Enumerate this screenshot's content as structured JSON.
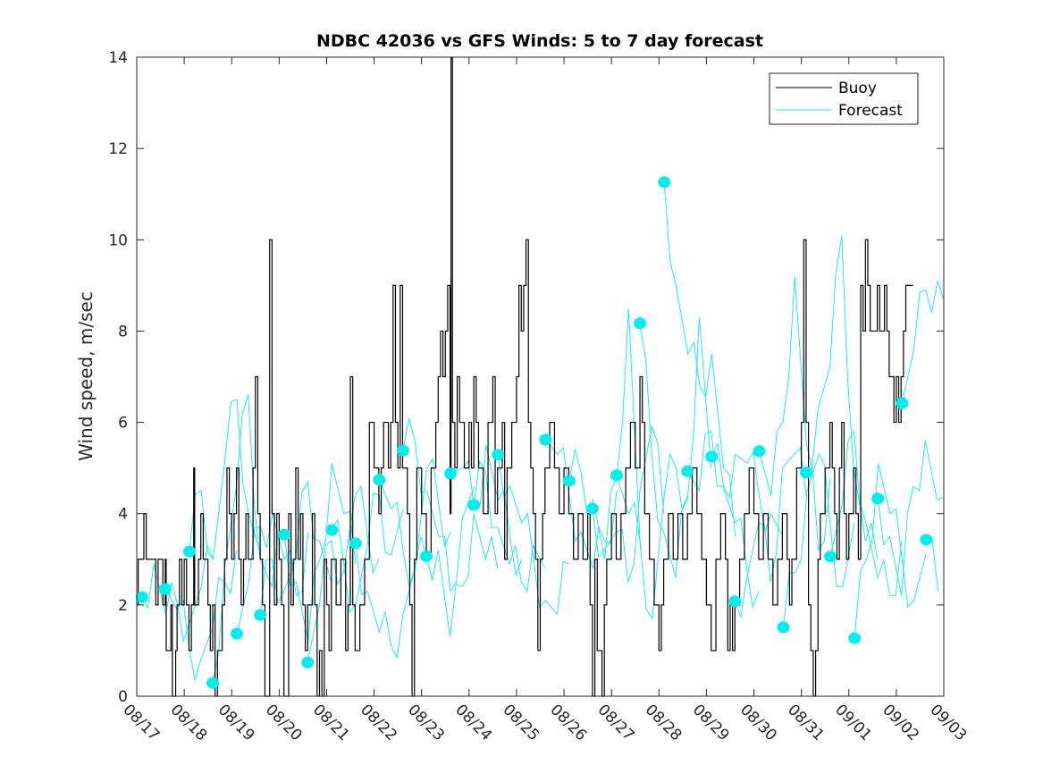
{
  "chart_data": {
    "type": "line",
    "title": "NDBC 42036 vs GFS Winds: 5 to 7 day forecast",
    "xlabel": "",
    "ylabel": "Wind speed, m/sec",
    "ylim": [
      0,
      14
    ],
    "xlim_days": [
      0,
      17
    ],
    "x_origin_date": "08/17",
    "x_tick_labels": [
      "08/17",
      "08/18",
      "08/19",
      "08/20",
      "08/21",
      "08/22",
      "08/23",
      "08/24",
      "08/25",
      "08/26",
      "08/27",
      "08/28",
      "08/29",
      "08/30",
      "08/31",
      "09/01",
      "09/02",
      "09/03"
    ],
    "y_ticks": [
      0,
      2,
      4,
      6,
      8,
      10,
      12,
      14
    ],
    "grid": false,
    "legend": {
      "placement": "top-right",
      "entries": [
        {
          "label": "Buoy",
          "color": "#000000"
        },
        {
          "label": "Forecast",
          "color": "#00e5ee"
        }
      ]
    },
    "colors": {
      "buoy": "#000000",
      "forecast": "#22e8f0",
      "marker": "#00eeee"
    },
    "buoy_series": {
      "name": "Buoy",
      "note": "hourly step series, day offset from 08/17 and speed m/s (approximate)",
      "points": [
        [
          0.0,
          2
        ],
        [
          0.03,
          3
        ],
        [
          0.12,
          3
        ],
        [
          0.15,
          4
        ],
        [
          0.17,
          4
        ],
        [
          0.2,
          3
        ],
        [
          0.4,
          2
        ],
        [
          0.45,
          3
        ],
        [
          0.5,
          3
        ],
        [
          0.55,
          2
        ],
        [
          0.6,
          3
        ],
        [
          0.62,
          1
        ],
        [
          0.7,
          1
        ],
        [
          0.72,
          2
        ],
        [
          0.75,
          0
        ],
        [
          0.8,
          0
        ],
        [
          0.82,
          1
        ],
        [
          0.85,
          2
        ],
        [
          0.9,
          3
        ],
        [
          0.95,
          2
        ],
        [
          1.0,
          3
        ],
        [
          1.05,
          2
        ],
        [
          1.1,
          1
        ],
        [
          1.15,
          2
        ],
        [
          1.2,
          5
        ],
        [
          1.22,
          2
        ],
        [
          1.3,
          3
        ],
        [
          1.35,
          4
        ],
        [
          1.4,
          3
        ],
        [
          1.5,
          2
        ],
        [
          1.55,
          1
        ],
        [
          1.6,
          2
        ],
        [
          1.65,
          0
        ],
        [
          1.7,
          1
        ],
        [
          1.8,
          2
        ],
        [
          1.85,
          3
        ],
        [
          1.9,
          5
        ],
        [
          1.95,
          4
        ],
        [
          2.0,
          3
        ],
        [
          2.05,
          4
        ],
        [
          2.1,
          5
        ],
        [
          2.15,
          3
        ],
        [
          2.2,
          2
        ],
        [
          2.25,
          3
        ],
        [
          2.3,
          4
        ],
        [
          2.35,
          3
        ],
        [
          2.45,
          5
        ],
        [
          2.5,
          7
        ],
        [
          2.55,
          4
        ],
        [
          2.6,
          3
        ],
        [
          2.65,
          2
        ],
        [
          2.7,
          0
        ],
        [
          2.8,
          10
        ],
        [
          2.85,
          4
        ],
        [
          2.9,
          2
        ],
        [
          2.95,
          4
        ],
        [
          3.0,
          3
        ],
        [
          3.05,
          2
        ],
        [
          3.1,
          0
        ],
        [
          3.2,
          4
        ],
        [
          3.25,
          2
        ],
        [
          3.3,
          3
        ],
        [
          3.35,
          5
        ],
        [
          3.4,
          3
        ],
        [
          3.45,
          4
        ],
        [
          3.5,
          2
        ],
        [
          3.55,
          1
        ],
        [
          3.6,
          2
        ],
        [
          3.7,
          4
        ],
        [
          3.75,
          2
        ],
        [
          3.8,
          0
        ],
        [
          3.85,
          1
        ],
        [
          3.9,
          0
        ],
        [
          3.95,
          3
        ],
        [
          4.0,
          2
        ],
        [
          4.05,
          1
        ],
        [
          4.1,
          3
        ],
        [
          4.2,
          2
        ],
        [
          4.3,
          3
        ],
        [
          4.4,
          1
        ],
        [
          4.45,
          2
        ],
        [
          4.5,
          7
        ],
        [
          4.55,
          2
        ],
        [
          4.6,
          1
        ],
        [
          4.7,
          2
        ],
        [
          4.8,
          3
        ],
        [
          4.9,
          6
        ],
        [
          5.0,
          5
        ],
        [
          5.1,
          4
        ],
        [
          5.15,
          5
        ],
        [
          5.2,
          6
        ],
        [
          5.3,
          5
        ],
        [
          5.35,
          6
        ],
        [
          5.4,
          9
        ],
        [
          5.45,
          6
        ],
        [
          5.5,
          5
        ],
        [
          5.55,
          9
        ],
        [
          5.6,
          5
        ],
        [
          5.7,
          4
        ],
        [
          5.75,
          2
        ],
        [
          5.8,
          0
        ],
        [
          5.85,
          3
        ],
        [
          5.9,
          5
        ],
        [
          6.0,
          4
        ],
        [
          6.1,
          3
        ],
        [
          6.2,
          5
        ],
        [
          6.3,
          6
        ],
        [
          6.35,
          7
        ],
        [
          6.4,
          8
        ],
        [
          6.45,
          7
        ],
        [
          6.5,
          8
        ],
        [
          6.55,
          9
        ],
        [
          6.6,
          4
        ],
        [
          6.62,
          14
        ],
        [
          6.65,
          6
        ],
        [
          6.7,
          5
        ],
        [
          6.75,
          7
        ],
        [
          6.8,
          6
        ],
        [
          6.9,
          5
        ],
        [
          7.0,
          6
        ],
        [
          7.05,
          5
        ],
        [
          7.1,
          7
        ],
        [
          7.15,
          6
        ],
        [
          7.2,
          5
        ],
        [
          7.3,
          4
        ],
        [
          7.4,
          6
        ],
        [
          7.5,
          7
        ],
        [
          7.55,
          4
        ],
        [
          7.6,
          5
        ],
        [
          7.7,
          6
        ],
        [
          7.75,
          3
        ],
        [
          7.8,
          5
        ],
        [
          7.9,
          6
        ],
        [
          8.0,
          7
        ],
        [
          8.05,
          9
        ],
        [
          8.1,
          8
        ],
        [
          8.15,
          9
        ],
        [
          8.2,
          10
        ],
        [
          8.25,
          6
        ],
        [
          8.3,
          5
        ],
        [
          8.35,
          4
        ],
        [
          8.4,
          3
        ],
        [
          8.45,
          1
        ],
        [
          8.5,
          3
        ],
        [
          8.55,
          4
        ],
        [
          8.6,
          5
        ],
        [
          8.7,
          6
        ],
        [
          8.8,
          5
        ],
        [
          8.9,
          4
        ],
        [
          9.0,
          5
        ],
        [
          9.1,
          4
        ],
        [
          9.2,
          3
        ],
        [
          9.3,
          4
        ],
        [
          9.4,
          3
        ],
        [
          9.5,
          4
        ],
        [
          9.55,
          2
        ],
        [
          9.6,
          0
        ],
        [
          9.65,
          3
        ],
        [
          9.7,
          1
        ],
        [
          9.8,
          0
        ],
        [
          9.85,
          2
        ],
        [
          9.9,
          3
        ],
        [
          10.0,
          4
        ],
        [
          10.1,
          3
        ],
        [
          10.2,
          4
        ],
        [
          10.3,
          5
        ],
        [
          10.4,
          6
        ],
        [
          10.5,
          5
        ],
        [
          10.6,
          7
        ],
        [
          10.65,
          6
        ],
        [
          10.7,
          4
        ],
        [
          10.8,
          3
        ],
        [
          10.9,
          2
        ],
        [
          11.0,
          1
        ],
        [
          11.05,
          2
        ],
        [
          11.1,
          3
        ],
        [
          11.2,
          4
        ],
        [
          11.3,
          3
        ],
        [
          11.4,
          4
        ],
        [
          11.5,
          3
        ],
        [
          11.6,
          4
        ],
        [
          11.7,
          5
        ],
        [
          11.8,
          4
        ],
        [
          11.9,
          3
        ],
        [
          12.0,
          2
        ],
        [
          12.1,
          1
        ],
        [
          12.2,
          3
        ],
        [
          12.3,
          4
        ],
        [
          12.4,
          3
        ],
        [
          12.45,
          1
        ],
        [
          12.5,
          2
        ],
        [
          12.55,
          1
        ],
        [
          12.6,
          2
        ],
        [
          12.7,
          3
        ],
        [
          12.8,
          4
        ],
        [
          12.9,
          5
        ],
        [
          13.0,
          4
        ],
        [
          13.1,
          3
        ],
        [
          13.2,
          4
        ],
        [
          13.3,
          3
        ],
        [
          13.4,
          2
        ],
        [
          13.5,
          3
        ],
        [
          13.6,
          4
        ],
        [
          13.7,
          3
        ],
        [
          13.75,
          2
        ],
        [
          13.8,
          3
        ],
        [
          13.9,
          5
        ],
        [
          14.0,
          6
        ],
        [
          14.05,
          10
        ],
        [
          14.1,
          6
        ],
        [
          14.15,
          2
        ],
        [
          14.2,
          1
        ],
        [
          14.25,
          0
        ],
        [
          14.3,
          1
        ],
        [
          14.35,
          3
        ],
        [
          14.4,
          4
        ],
        [
          14.5,
          5
        ],
        [
          14.6,
          6
        ],
        [
          14.65,
          5
        ],
        [
          14.7,
          4
        ],
        [
          14.75,
          3
        ],
        [
          14.8,
          5
        ],
        [
          14.85,
          6
        ],
        [
          14.9,
          4
        ],
        [
          14.95,
          3
        ],
        [
          15.0,
          4
        ],
        [
          15.1,
          5
        ],
        [
          15.15,
          4
        ],
        [
          15.2,
          3
        ],
        [
          15.25,
          9
        ],
        [
          15.3,
          8
        ],
        [
          15.35,
          10
        ],
        [
          15.4,
          9
        ],
        [
          15.45,
          8
        ],
        [
          15.5,
          8
        ],
        [
          15.6,
          9
        ],
        [
          15.65,
          8
        ],
        [
          15.7,
          8
        ],
        [
          15.75,
          9
        ],
        [
          15.8,
          8
        ],
        [
          15.85,
          7
        ],
        [
          15.9,
          7
        ],
        [
          15.95,
          6
        ],
        [
          16.0,
          7
        ],
        [
          16.05,
          6
        ],
        [
          16.1,
          7
        ],
        [
          16.15,
          8
        ],
        [
          16.2,
          9
        ],
        [
          16.3,
          9
        ],
        [
          16.35,
          9
        ]
      ]
    },
    "forecast_markers": {
      "name": "Forecast start points",
      "points": [
        [
          0.11,
          2.17
        ],
        [
          0.6,
          2.35
        ],
        [
          1.11,
          3.17
        ],
        [
          1.6,
          0.29
        ],
        [
          2.11,
          1.37
        ],
        [
          2.6,
          1.78
        ],
        [
          3.11,
          3.54
        ],
        [
          3.6,
          0.74
        ],
        [
          4.11,
          3.64
        ],
        [
          4.61,
          3.35
        ],
        [
          5.11,
          4.74
        ],
        [
          5.61,
          5.38
        ],
        [
          6.1,
          3.07
        ],
        [
          6.61,
          4.88
        ],
        [
          7.1,
          4.19
        ],
        [
          7.61,
          5.29
        ],
        [
          8.61,
          5.62
        ],
        [
          9.11,
          4.72
        ],
        [
          9.6,
          4.11
        ],
        [
          10.11,
          4.84
        ],
        [
          10.6,
          8.17
        ],
        [
          11.11,
          11.26
        ],
        [
          11.6,
          4.93
        ],
        [
          12.11,
          5.25
        ],
        [
          12.6,
          2.08
        ],
        [
          13.11,
          5.37
        ],
        [
          13.62,
          1.51
        ],
        [
          14.1,
          4.9
        ],
        [
          14.61,
          3.06
        ],
        [
          15.12,
          1.27
        ],
        [
          15.61,
          4.33
        ],
        [
          16.12,
          6.42
        ],
        [
          16.63,
          3.43
        ]
      ]
    },
    "forecast_trace_seeds": [
      [
        2.17,
        2.9,
        1.8,
        2.0,
        1.6,
        2.4,
        3.0
      ],
      [
        2.35,
        1.9,
        1.1,
        0.8,
        1.5,
        2.5,
        3.2
      ],
      [
        3.17,
        4.5,
        3.0,
        5.2,
        6.5,
        4.0,
        3.1
      ],
      [
        0.29,
        2.8,
        4.6,
        6.6,
        3.0,
        2.4,
        3.5
      ],
      [
        1.37,
        2.5,
        3.7,
        4.0,
        3.0,
        2.2,
        3.6
      ],
      [
        1.78,
        3.0,
        2.3,
        3.0,
        4.7,
        3.4,
        2.5
      ],
      [
        3.54,
        2.5,
        1.2,
        3.0,
        5.1,
        4.0,
        2.9
      ],
      [
        0.74,
        2.0,
        3.4,
        2.7,
        4.4,
        3.6,
        3.0
      ],
      [
        3.64,
        2.9,
        2.0,
        3.3,
        4.4,
        3.1,
        4.1
      ],
      [
        3.35,
        2.3,
        1.4,
        1.1,
        1.8,
        2.8,
        3.0
      ],
      [
        4.74,
        4.1,
        3.2,
        2.8,
        5.0,
        4.2,
        3.6
      ],
      [
        5.38,
        5.6,
        4.5,
        3.5,
        2.3,
        3.9,
        4.6
      ],
      [
        3.07,
        3.2,
        1.3,
        2.4,
        4.0,
        3.0,
        2.8
      ],
      [
        4.88,
        5.0,
        4.1,
        5.5,
        4.3,
        3.5,
        3.0
      ],
      [
        4.19,
        4.9,
        3.7,
        2.9,
        2.5,
        3.3,
        2.8
      ],
      [
        5.29,
        4.6,
        3.8,
        3.0,
        2.1,
        1.8,
        2.9
      ],
      [
        5.62,
        5.3,
        4.4,
        3.6,
        2.8,
        3.4,
        4.5
      ],
      [
        4.72,
        4.9,
        4.3,
        3.0,
        4.8,
        8.5,
        3.2
      ],
      [
        4.11,
        3.2,
        3.6,
        2.5,
        4.5,
        5.9,
        4.0
      ],
      [
        4.84,
        4.0,
        3.3,
        1.7,
        4.4,
        5.0,
        4.4
      ],
      [
        8.17,
        5.3,
        3.6,
        2.6,
        4.3,
        8.3,
        5.0
      ],
      [
        11.26,
        9.0,
        7.5,
        6.8,
        7.5,
        5.0,
        3.5
      ],
      [
        4.93,
        4.5,
        5.8,
        4.6,
        3.8,
        2.8,
        2.3
      ],
      [
        5.25,
        4.6,
        5.3,
        5.1,
        4.4,
        4.0,
        3.5
      ],
      [
        2.08,
        2.6,
        3.8,
        2.5,
        5.0,
        5.3,
        4.4
      ],
      [
        5.37,
        4.4,
        6.0,
        9.2,
        5.5,
        3.2,
        4.8
      ],
      [
        1.51,
        2.7,
        4.5,
        5.3,
        3.6,
        2.4,
        3.8
      ],
      [
        4.9,
        6.3,
        7.2,
        10.1,
        5.0,
        3.4,
        3.0
      ],
      [
        3.06,
        4.2,
        5.8,
        3.8,
        2.6,
        2.2,
        3.4
      ],
      [
        1.27,
        3.0,
        5.1,
        4.0,
        3.0,
        2.1,
        3.1
      ],
      [
        4.33,
        3.5,
        2.2,
        4.6,
        5.6,
        4.3,
        3.2
      ],
      [
        6.42,
        7.6,
        8.9,
        9.1,
        8.3,
        5.8,
        4.2
      ],
      [
        3.43,
        2.3,
        1.9,
        4.0,
        6.0,
        5.4,
        3.4
      ]
    ]
  }
}
